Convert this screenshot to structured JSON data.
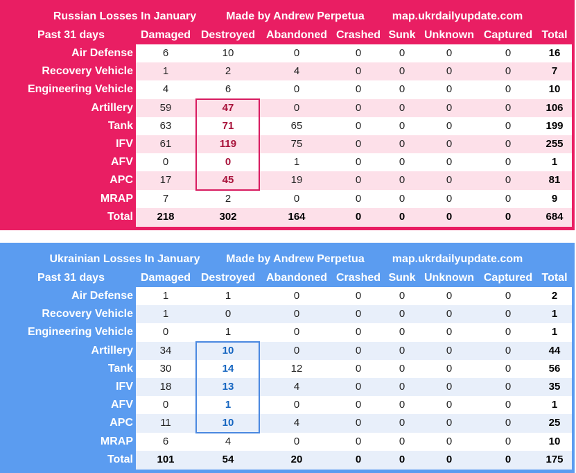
{
  "columns": [
    "Damaged",
    "Destroyed",
    "Abandoned",
    "Crashed",
    "Sunk",
    "Unknown",
    "Captured",
    "Total"
  ],
  "tables": [
    {
      "id": "ru",
      "title": "Russian Losses In January",
      "credit": "Made by Andrew Perpetua",
      "site": "map.ukrdailyupdate.com",
      "period": "Past 31 days",
      "accent_color": "#e91e63",
      "rows": [
        {
          "label": "Air Defense",
          "values": [
            "6",
            "10",
            "0",
            "0",
            "0",
            "0",
            "0",
            "16"
          ]
        },
        {
          "label": "Recovery Vehicle",
          "values": [
            "1",
            "2",
            "4",
            "0",
            "0",
            "0",
            "0",
            "7"
          ]
        },
        {
          "label": "Engineering Vehicle",
          "values": [
            "4",
            "6",
            "0",
            "0",
            "0",
            "0",
            "0",
            "10"
          ]
        },
        {
          "label": "Artillery",
          "values": [
            "59",
            "47",
            "0",
            "0",
            "0",
            "0",
            "0",
            "106"
          ]
        },
        {
          "label": "Tank",
          "values": [
            "63",
            "71",
            "65",
            "0",
            "0",
            "0",
            "0",
            "199"
          ]
        },
        {
          "label": "IFV",
          "values": [
            "61",
            "119",
            "75",
            "0",
            "0",
            "0",
            "0",
            "255"
          ]
        },
        {
          "label": "AFV",
          "values": [
            "0",
            "0",
            "1",
            "0",
            "0",
            "0",
            "0",
            "1"
          ]
        },
        {
          "label": "APC",
          "values": [
            "17",
            "45",
            "19",
            "0",
            "0",
            "0",
            "0",
            "81"
          ]
        },
        {
          "label": "MRAP",
          "values": [
            "7",
            "2",
            "0",
            "0",
            "0",
            "0",
            "0",
            "9"
          ]
        },
        {
          "label": "Total",
          "values": [
            "218",
            "302",
            "164",
            "0",
            "0",
            "0",
            "0",
            "684"
          ]
        }
      ]
    },
    {
      "id": "ua",
      "title": "Ukrainian Losses In January",
      "credit": "Made by Andrew Perpetua",
      "site": "map.ukrdailyupdate.com",
      "period": "Past 31 days",
      "accent_color": "#5b9cf0",
      "rows": [
        {
          "label": "Air Defense",
          "values": [
            "1",
            "1",
            "0",
            "0",
            "0",
            "0",
            "0",
            "2"
          ]
        },
        {
          "label": "Recovery Vehicle",
          "values": [
            "1",
            "0",
            "0",
            "0",
            "0",
            "0",
            "0",
            "1"
          ]
        },
        {
          "label": "Engineering Vehicle",
          "values": [
            "0",
            "1",
            "0",
            "0",
            "0",
            "0",
            "0",
            "1"
          ]
        },
        {
          "label": "Artillery",
          "values": [
            "34",
            "10",
            "0",
            "0",
            "0",
            "0",
            "0",
            "44"
          ]
        },
        {
          "label": "Tank",
          "values": [
            "30",
            "14",
            "12",
            "0",
            "0",
            "0",
            "0",
            "56"
          ]
        },
        {
          "label": "IFV",
          "values": [
            "18",
            "13",
            "4",
            "0",
            "0",
            "0",
            "0",
            "35"
          ]
        },
        {
          "label": "AFV",
          "values": [
            "0",
            "1",
            "0",
            "0",
            "0",
            "0",
            "0",
            "1"
          ]
        },
        {
          "label": "APC",
          "values": [
            "11",
            "10",
            "4",
            "0",
            "0",
            "0",
            "0",
            "25"
          ]
        },
        {
          "label": "MRAP",
          "values": [
            "6",
            "4",
            "0",
            "0",
            "0",
            "0",
            "0",
            "10"
          ]
        },
        {
          "label": "Total",
          "values": [
            "101",
            "54",
            "20",
            "0",
            "0",
            "0",
            "0",
            "175"
          ]
        }
      ]
    }
  ]
}
